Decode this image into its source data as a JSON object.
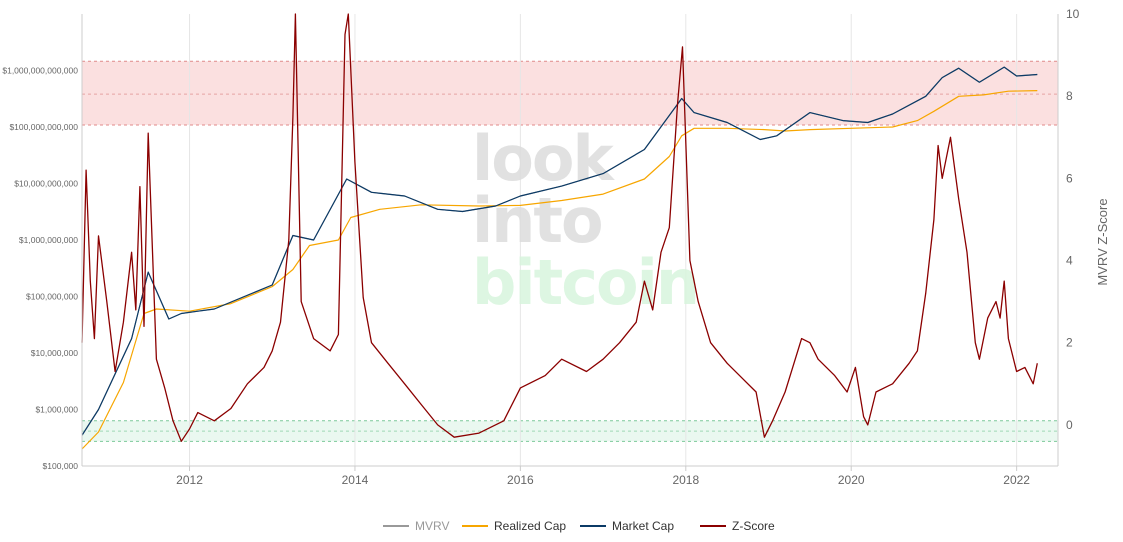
{
  "chart_data": {
    "type": "line",
    "watermark": [
      "look",
      "into",
      "bitcoin"
    ],
    "y_axis_left": {
      "scale": "log",
      "range": [
        100000,
        10000000000000
      ],
      "tick_values": [
        100000,
        1000000,
        10000000,
        100000000,
        1000000000,
        10000000000,
        100000000000,
        1000000000000
      ],
      "tick_labels": [
        "$100,000",
        "$1,000,000",
        "$10,000,000",
        "$100,000,000",
        "$1,000,000,000",
        "$10,000,000,000",
        "$100,000,000,000",
        "$1,000,000,000,000"
      ]
    },
    "y_axis_right": {
      "title": "MVRV Z-Score",
      "range": [
        -1,
        10
      ],
      "tick_values": [
        0,
        2,
        4,
        6,
        8,
        10
      ],
      "tick_labels": [
        "0",
        "2",
        "4",
        "6",
        "8",
        "10"
      ]
    },
    "x_axis": {
      "range": [
        2010.7,
        2022.5
      ],
      "tick_values": [
        2012,
        2014,
        2016,
        2018,
        2020,
        2022
      ],
      "tick_labels": [
        "2012",
        "2014",
        "2016",
        "2018",
        "2020",
        "2022"
      ]
    },
    "bands": [
      {
        "zone": "overvalued",
        "color": "#f7c7c7",
        "z_from": 7.3,
        "z_to": 8.85,
        "midline": 8.05
      },
      {
        "zone": "undervalued",
        "color": "#d9f2e3",
        "z_from": -0.4,
        "z_to": 0.1,
        "midline": -0.15
      }
    ],
    "grid": true,
    "legend_position": "bottom-center",
    "series": [
      {
        "name": "MVRV",
        "color": "#999999",
        "axis": "left",
        "x": [
          2010.7,
          2010.9,
          2011.3,
          2011.5,
          2011.75,
          2011.9,
          2012.1,
          2012.3,
          2013.0,
          2013.25,
          2013.5,
          2013.9,
          2014.2,
          2014.6,
          2015.0,
          2015.3,
          2015.7,
          2016.0,
          2016.5,
          2017.0,
          2017.5,
          2017.95,
          2018.1,
          2018.5,
          2018.9,
          2019.1,
          2019.5,
          2019.9,
          2020.2,
          2020.5,
          2020.9,
          2021.1,
          2021.3,
          2021.55,
          2021.85,
          2022.0,
          2022.25
        ],
        "values": [
          350000,
          1000000,
          18000000,
          270000000,
          40000000,
          50000000,
          55000000,
          60000000,
          160000000,
          1200000000,
          1000000000,
          12000000000,
          7000000000,
          6000000000,
          3500000000,
          3200000000,
          4000000000,
          6000000000,
          9000000000,
          15000000000,
          40000000000,
          320000000000,
          180000000000,
          120000000000,
          60000000000,
          70000000000,
          180000000000,
          130000000000,
          120000000000,
          170000000000,
          350000000000,
          750000000000,
          1100000000000,
          620000000000,
          1150000000000,
          800000000000,
          850000000000
        ]
      },
      {
        "name": "Realized Cap",
        "color": "#f7a600",
        "axis": "left",
        "x": [
          2010.7,
          2010.9,
          2011.2,
          2011.45,
          2011.6,
          2012.0,
          2012.5,
          2013.0,
          2013.25,
          2013.45,
          2013.8,
          2013.95,
          2014.3,
          2014.8,
          2015.5,
          2016.0,
          2016.5,
          2017.0,
          2017.5,
          2017.8,
          2017.95,
          2018.1,
          2018.5,
          2018.95,
          2019.2,
          2019.5,
          2020.0,
          2020.5,
          2020.8,
          2021.0,
          2021.3,
          2021.6,
          2021.9,
          2022.25
        ],
        "values": [
          200000,
          400000,
          3000000,
          50000000,
          60000000,
          55000000,
          75000000,
          150000000,
          300000000,
          800000000,
          1000000000,
          2500000000,
          3500000000,
          4200000000,
          4000000000,
          4100000000,
          5000000000,
          6500000000,
          12000000000,
          30000000000,
          70000000000,
          95000000000,
          95000000000,
          90000000000,
          85000000000,
          90000000000,
          95000000000,
          100000000000,
          130000000000,
          190000000000,
          350000000000,
          370000000000,
          430000000000,
          440000000000
        ]
      },
      {
        "name": "Market Cap",
        "color": "#0b3a66",
        "axis": "left",
        "x": [
          2010.7,
          2010.9,
          2011.3,
          2011.5,
          2011.75,
          2011.9,
          2012.1,
          2012.3,
          2013.0,
          2013.25,
          2013.5,
          2013.9,
          2014.2,
          2014.6,
          2015.0,
          2015.3,
          2015.7,
          2016.0,
          2016.5,
          2017.0,
          2017.5,
          2017.95,
          2018.1,
          2018.5,
          2018.9,
          2019.1,
          2019.5,
          2019.9,
          2020.2,
          2020.5,
          2020.9,
          2021.1,
          2021.3,
          2021.55,
          2021.85,
          2022.0,
          2022.25
        ],
        "values": [
          350000,
          1000000,
          18000000,
          270000000,
          40000000,
          50000000,
          55000000,
          60000000,
          160000000,
          1200000000,
          1000000000,
          12000000000,
          7000000000,
          6000000000,
          3500000000,
          3200000000,
          4000000000,
          6000000000,
          9000000000,
          15000000000,
          40000000000,
          320000000000,
          180000000000,
          120000000000,
          60000000000,
          70000000000,
          180000000000,
          130000000000,
          120000000000,
          170000000000,
          350000000000,
          750000000000,
          1100000000000,
          620000000000,
          1150000000000,
          800000000000,
          850000000000
        ]
      },
      {
        "name": "Z-Score",
        "color": "#8b0000",
        "axis": "right",
        "x": [
          2010.7,
          2010.75,
          2010.8,
          2010.85,
          2010.9,
          2011.0,
          2011.1,
          2011.2,
          2011.3,
          2011.35,
          2011.4,
          2011.45,
          2011.5,
          2011.6,
          2011.7,
          2011.8,
          2011.9,
          2012.0,
          2012.1,
          2012.3,
          2012.5,
          2012.7,
          2012.9,
          2013.0,
          2013.1,
          2013.2,
          2013.25,
          2013.28,
          2013.35,
          2013.5,
          2013.7,
          2013.8,
          2013.88,
          2013.92,
          2014.0,
          2014.1,
          2014.2,
          2014.4,
          2014.6,
          2014.8,
          2015.0,
          2015.2,
          2015.5,
          2015.8,
          2016.0,
          2016.3,
          2016.5,
          2016.8,
          2017.0,
          2017.2,
          2017.4,
          2017.5,
          2017.6,
          2017.7,
          2017.8,
          2017.9,
          2017.96,
          2018.05,
          2018.15,
          2018.3,
          2018.5,
          2018.7,
          2018.85,
          2018.95,
          2019.05,
          2019.2,
          2019.4,
          2019.5,
          2019.6,
          2019.8,
          2019.95,
          2020.05,
          2020.15,
          2020.2,
          2020.3,
          2020.5,
          2020.7,
          2020.8,
          2020.9,
          2021.0,
          2021.05,
          2021.1,
          2021.2,
          2021.3,
          2021.4,
          2021.5,
          2021.55,
          2021.65,
          2021.75,
          2021.8,
          2021.85,
          2021.9,
          2022.0,
          2022.1,
          2022.2,
          2022.25
        ],
        "values": [
          2.0,
          6.2,
          3.5,
          2.1,
          4.6,
          3.0,
          1.3,
          2.5,
          4.2,
          2.8,
          5.8,
          2.4,
          7.1,
          1.6,
          0.9,
          0.1,
          -0.4,
          -0.1,
          0.3,
          0.1,
          0.4,
          1.0,
          1.4,
          1.8,
          2.5,
          4.5,
          7.5,
          10.0,
          3.0,
          2.1,
          1.8,
          2.2,
          9.5,
          10.0,
          6.4,
          3.1,
          2.0,
          1.5,
          1.0,
          0.5,
          0.0,
          -0.3,
          -0.2,
          0.1,
          0.9,
          1.2,
          1.6,
          1.3,
          1.6,
          2.0,
          2.5,
          3.5,
          2.8,
          4.2,
          4.8,
          7.8,
          9.2,
          4.0,
          3.0,
          2.0,
          1.5,
          1.1,
          0.8,
          -0.3,
          0.1,
          0.8,
          2.1,
          2.0,
          1.6,
          1.2,
          0.8,
          1.4,
          0.2,
          0.0,
          0.8,
          1.0,
          1.5,
          1.8,
          3.2,
          5.0,
          6.8,
          6.0,
          7.0,
          5.5,
          4.2,
          2.0,
          1.6,
          2.6,
          3.0,
          2.6,
          3.5,
          2.1,
          1.3,
          1.4,
          1.0,
          1.5
        ]
      }
    ]
  }
}
